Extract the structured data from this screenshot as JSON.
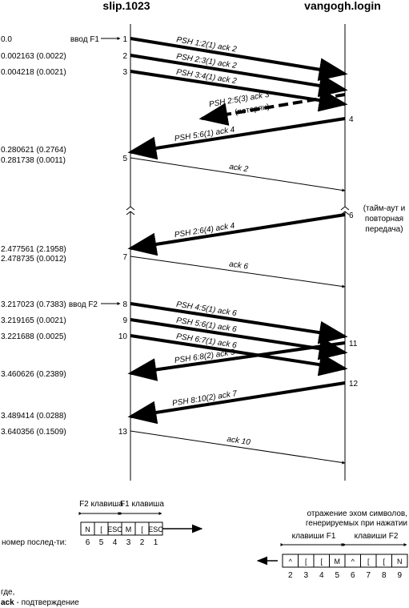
{
  "hosts": {
    "left": "slip.1023",
    "right": "vangogh.login"
  },
  "times": [
    "0.0",
    "0.002163 (0.0022)",
    "0.004218 (0.0021)",
    "0.280621 (0.2764)",
    "0.281738 (0.0011)",
    "2.477561 (2.1958)",
    "2.478735 (0.0012)",
    "3.217023 (0.7383)",
    "3.219165 (0.0021)",
    "3.221688 (0.0025)",
    "3.460626 (0.2389)",
    "3.489414 (0.0288)",
    "3.640356 (0.1509)"
  ],
  "inputs": [
    "ввод F1",
    "ввод F2"
  ],
  "segments": [
    {
      "number": "1",
      "label": "PSH 1:2(1)  ack 2"
    },
    {
      "number": "2",
      "label": "PSH 2:3(1)  ack 2"
    },
    {
      "number": "3",
      "label": "PSH 3:4(1)  ack 2"
    },
    {
      "label": "PSH 2:5(3)  ack 3",
      "note": "(потерян)"
    },
    {
      "number": "4",
      "label": "PSH 5:6(1)  ack 4"
    },
    {
      "number": "5",
      "label": "ack 2"
    },
    {
      "number": "6",
      "label": "PSH 2:6(4)  ack 4"
    },
    {
      "number": "7",
      "label": "ack 6"
    },
    {
      "number": "8",
      "label": "PSH 4:5(1)  ack 6"
    },
    {
      "number": "9",
      "label": "PSH 5:6(1)  ack 6"
    },
    {
      "number": "10",
      "label": "PSH 6:7(1)  ack 6"
    },
    {
      "number": "11",
      "label": "PSH 6:8(2)  ack 5"
    },
    {
      "number": "12",
      "label": "PSH 8:10(2)  ack 7"
    },
    {
      "number": "13",
      "label": "ack 10"
    }
  ],
  "timeout_note": [
    "(тайм-аут и",
    "повторная",
    "передача)"
  ],
  "left_buffer": {
    "keys": [
      "F2 клавиша",
      "F1 клавиша"
    ],
    "cells": [
      "N",
      "[",
      "ESC",
      "M",
      "[",
      "ESC"
    ],
    "numbers": [
      "6",
      "5",
      "4",
      "3",
      "2",
      "1"
    ],
    "caption": "номер послед-ти:"
  },
  "right_buffer": {
    "caption": [
      "отражение эхом символов,",
      "генерируемых при нажатии"
    ],
    "keys": [
      "клавиши F1",
      "клавиши F2"
    ],
    "cells": [
      "^",
      "[",
      "[",
      "M",
      "^",
      "[",
      "[",
      "N"
    ],
    "numbers": [
      "2",
      "3",
      "4",
      "5",
      "6",
      "7",
      "8",
      "9"
    ]
  },
  "legend": {
    "intro": "где,",
    "term": "ack",
    "definition": " - подтверждение"
  }
}
